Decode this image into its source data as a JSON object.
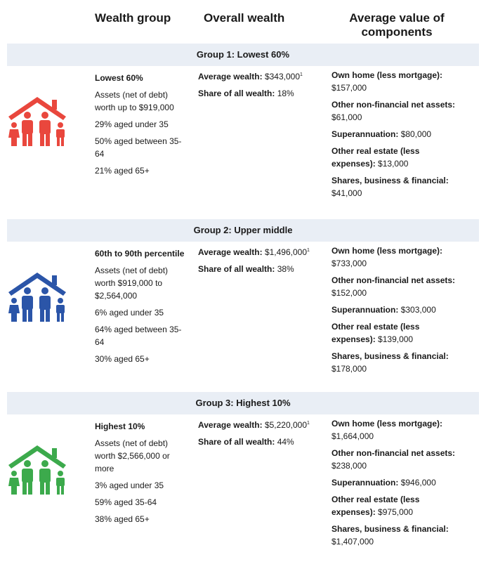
{
  "header": [
    "Wealth group",
    "Overall wealth",
    "Average value of components"
  ],
  "groups": [
    {
      "title": "Group 1: Lowest 60%",
      "group_name": "Lowest 60%",
      "details": [
        "Assets (net of debt) worth up to $919,000",
        "29% aged under 35",
        "50% aged between 35-64",
        "21% aged 65+"
      ],
      "average_wealth": {
        "label": "Average wealth:",
        "value": "$343,000",
        "note": "1"
      },
      "share": {
        "label": "Share of all wealth:",
        "value": "18%"
      },
      "components": [
        {
          "label": "Own home (less mortgage):",
          "value": "$157,000"
        },
        {
          "label": "Other non-financial net assets:",
          "value": "$61,000"
        },
        {
          "label": "Superannuation:",
          "value": "$80,000"
        },
        {
          "label": "Other real estate (less expenses):",
          "value": "$13,000"
        },
        {
          "label": "Shares, business & financial:",
          "value": "$41,000"
        }
      ]
    },
    {
      "title": "Group 2: Upper middle",
      "group_name": "60th to 90th percentile",
      "details": [
        "Assets (net of debt) worth $919,000 to $2,564,000",
        "6% aged under 35",
        "64% aged between 35-64",
        "30% aged 65+"
      ],
      "average_wealth": {
        "label": "Average wealth:",
        "value": "$1,496,000",
        "note": "1"
      },
      "share": {
        "label": "Share of all wealth:",
        "value": "38%"
      },
      "components": [
        {
          "label": "Own home (less mortgage):",
          "value": "$733,000"
        },
        {
          "label": "Other non-financial net assets:",
          "value": "$152,000"
        },
        {
          "label": "Superannuation:",
          "value": "$303,000"
        },
        {
          "label": "Other real estate (less expenses):",
          "value": "$139,000"
        },
        {
          "label": "Shares, business & financial:",
          "value": "$178,000"
        }
      ]
    },
    {
      "title": "Group 3: Highest 10%",
      "group_name": "Highest 10%",
      "details": [
        "Assets (net of debt) worth $2,566,000 or more",
        "3% aged under 35",
        "59% aged 35-64",
        "38% aged 65+"
      ],
      "average_wealth": {
        "label": "Average wealth:",
        "value": "$5,220,000",
        "note": "1"
      },
      "share": {
        "label": "Share of all wealth:",
        "value": "44%"
      },
      "components": [
        {
          "label": "Own home (less mortgage):",
          "value": "$1,664,000"
        },
        {
          "label": "Other non-financial net assets:",
          "value": "$238,000"
        },
        {
          "label": "Superannuation:",
          "value": "$946,000"
        },
        {
          "label": "Other real estate (less expenses):",
          "value": "$975,000"
        },
        {
          "label": "Shares, business & financial:",
          "value": "$1,407,000"
        }
      ]
    }
  ]
}
